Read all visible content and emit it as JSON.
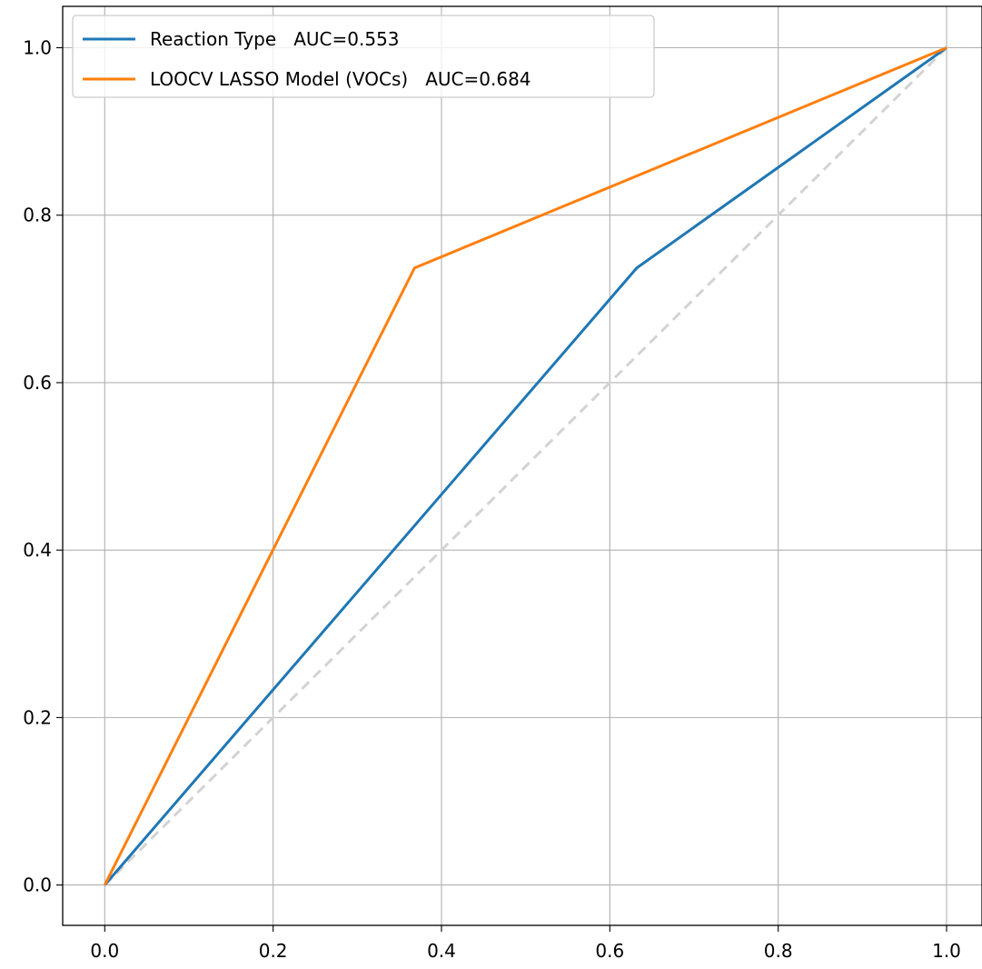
{
  "chart_data": {
    "type": "line",
    "title": "",
    "xlabel": "",
    "ylabel": "",
    "xlim": [
      -0.05,
      1.05
    ],
    "ylim": [
      -0.05,
      1.05
    ],
    "xticks": [
      0.0,
      0.2,
      0.4,
      0.6,
      0.8,
      1.0
    ],
    "yticks": [
      0.0,
      0.2,
      0.4,
      0.6,
      0.8,
      1.0
    ],
    "xtick_labels": [
      "0.0",
      "0.2",
      "0.4",
      "0.6",
      "0.8",
      "1.0"
    ],
    "ytick_labels": [
      "0.0",
      "0.2",
      "0.4",
      "0.6",
      "0.8",
      "1.0"
    ],
    "grid": true,
    "legend_position": "top-left",
    "series": [
      {
        "name": "Reaction Type   AUC=0.553",
        "color": "#1f77b4",
        "x": [
          0.0,
          0.632,
          1.0
        ],
        "y": [
          0.0,
          0.737,
          1.0
        ]
      },
      {
        "name": "LOOCV LASSO Model (VOCs)   AUC=0.684",
        "color": "#ff7f0e",
        "x": [
          0.0,
          0.368,
          1.0
        ],
        "y": [
          0.0,
          0.737,
          1.0
        ]
      }
    ],
    "reference_line": {
      "x": [
        0.0,
        1.0
      ],
      "y": [
        0.0,
        1.0
      ],
      "color": "#d3d3d3",
      "style": "dashed"
    }
  }
}
